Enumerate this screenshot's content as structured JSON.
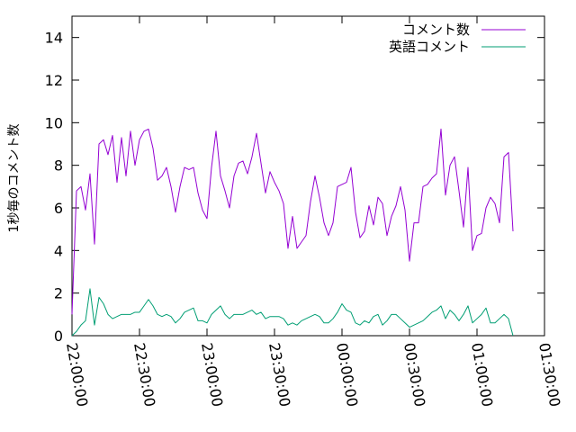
{
  "chart_data": {
    "type": "line",
    "title": "",
    "xlabel": "",
    "ylabel": "1秒毎のコメント数",
    "ylim": [
      0,
      15
    ],
    "y_ticks": [
      "0",
      "2",
      "4",
      "6",
      "8",
      "10",
      "12",
      "14"
    ],
    "x_start": "22:00:00",
    "x_end": "01:30:00",
    "x_ticks": [
      "22:00:00",
      "22:30:00",
      "23:00:00",
      "23:30:00",
      "00:00:00",
      "00:30:00",
      "01:00:00",
      "01:30:00"
    ],
    "grid": false,
    "legend": "top-right",
    "sample_interval_minutes": 2,
    "series": [
      {
        "name": "コメント数",
        "color": "#9400d3",
        "values": [
          1.0,
          6.8,
          7.0,
          5.9,
          7.6,
          4.3,
          9.0,
          9.2,
          8.5,
          9.4,
          7.2,
          9.3,
          7.5,
          9.6,
          8.0,
          9.2,
          9.6,
          9.7,
          8.8,
          7.3,
          7.5,
          7.9,
          7.0,
          5.8,
          7.0,
          7.9,
          7.8,
          7.9,
          6.7,
          5.9,
          5.5,
          7.9,
          9.6,
          7.5,
          6.8,
          6.0,
          7.5,
          8.1,
          8.2,
          7.6,
          8.4,
          9.5,
          8.1,
          6.7,
          7.7,
          7.2,
          6.8,
          6.2,
          4.1,
          5.6,
          4.1,
          4.4,
          4.7,
          6.3,
          7.5,
          6.5,
          5.3,
          4.7,
          5.3,
          7.0,
          7.1,
          7.2,
          7.9,
          5.8,
          4.6,
          4.9,
          6.1,
          5.2,
          6.5,
          6.2,
          4.7,
          5.6,
          6.1,
          7.0,
          5.9,
          3.5,
          5.3,
          5.3,
          7.0,
          7.1,
          7.4,
          7.6,
          9.7,
          6.6,
          8.0,
          8.4,
          6.8,
          5.1,
          7.9,
          4.0,
          4.7,
          4.8,
          6.0,
          6.5,
          6.2,
          5.3,
          8.4,
          8.6,
          4.9
        ]
      },
      {
        "name": "英語コメント",
        "color": "#009e73",
        "values": [
          0.0,
          0.2,
          0.5,
          0.7,
          2.2,
          0.5,
          1.8,
          1.5,
          1.0,
          0.8,
          0.9,
          1.0,
          1.0,
          1.0,
          1.1,
          1.1,
          1.4,
          1.7,
          1.4,
          1.0,
          0.9,
          1.0,
          0.9,
          0.6,
          0.8,
          1.1,
          1.2,
          1.3,
          0.7,
          0.7,
          0.6,
          1.0,
          1.2,
          1.4,
          1.0,
          0.8,
          1.0,
          1.0,
          1.0,
          1.1,
          1.2,
          1.0,
          1.1,
          0.8,
          0.9,
          0.9,
          0.9,
          0.8,
          0.5,
          0.6,
          0.5,
          0.7,
          0.8,
          0.9,
          1.0,
          0.9,
          0.6,
          0.6,
          0.8,
          1.1,
          1.5,
          1.2,
          1.1,
          0.6,
          0.5,
          0.7,
          0.6,
          0.9,
          1.0,
          0.5,
          0.7,
          1.0,
          1.0,
          0.8,
          0.6,
          0.4,
          0.5,
          0.6,
          0.7,
          0.9,
          1.1,
          1.2,
          1.4,
          0.8,
          1.2,
          1.0,
          0.7,
          1.0,
          1.4,
          0.6,
          0.8,
          1.0,
          1.3,
          0.6,
          0.6,
          0.8,
          1.0,
          0.8,
          0.0
        ]
      }
    ]
  }
}
